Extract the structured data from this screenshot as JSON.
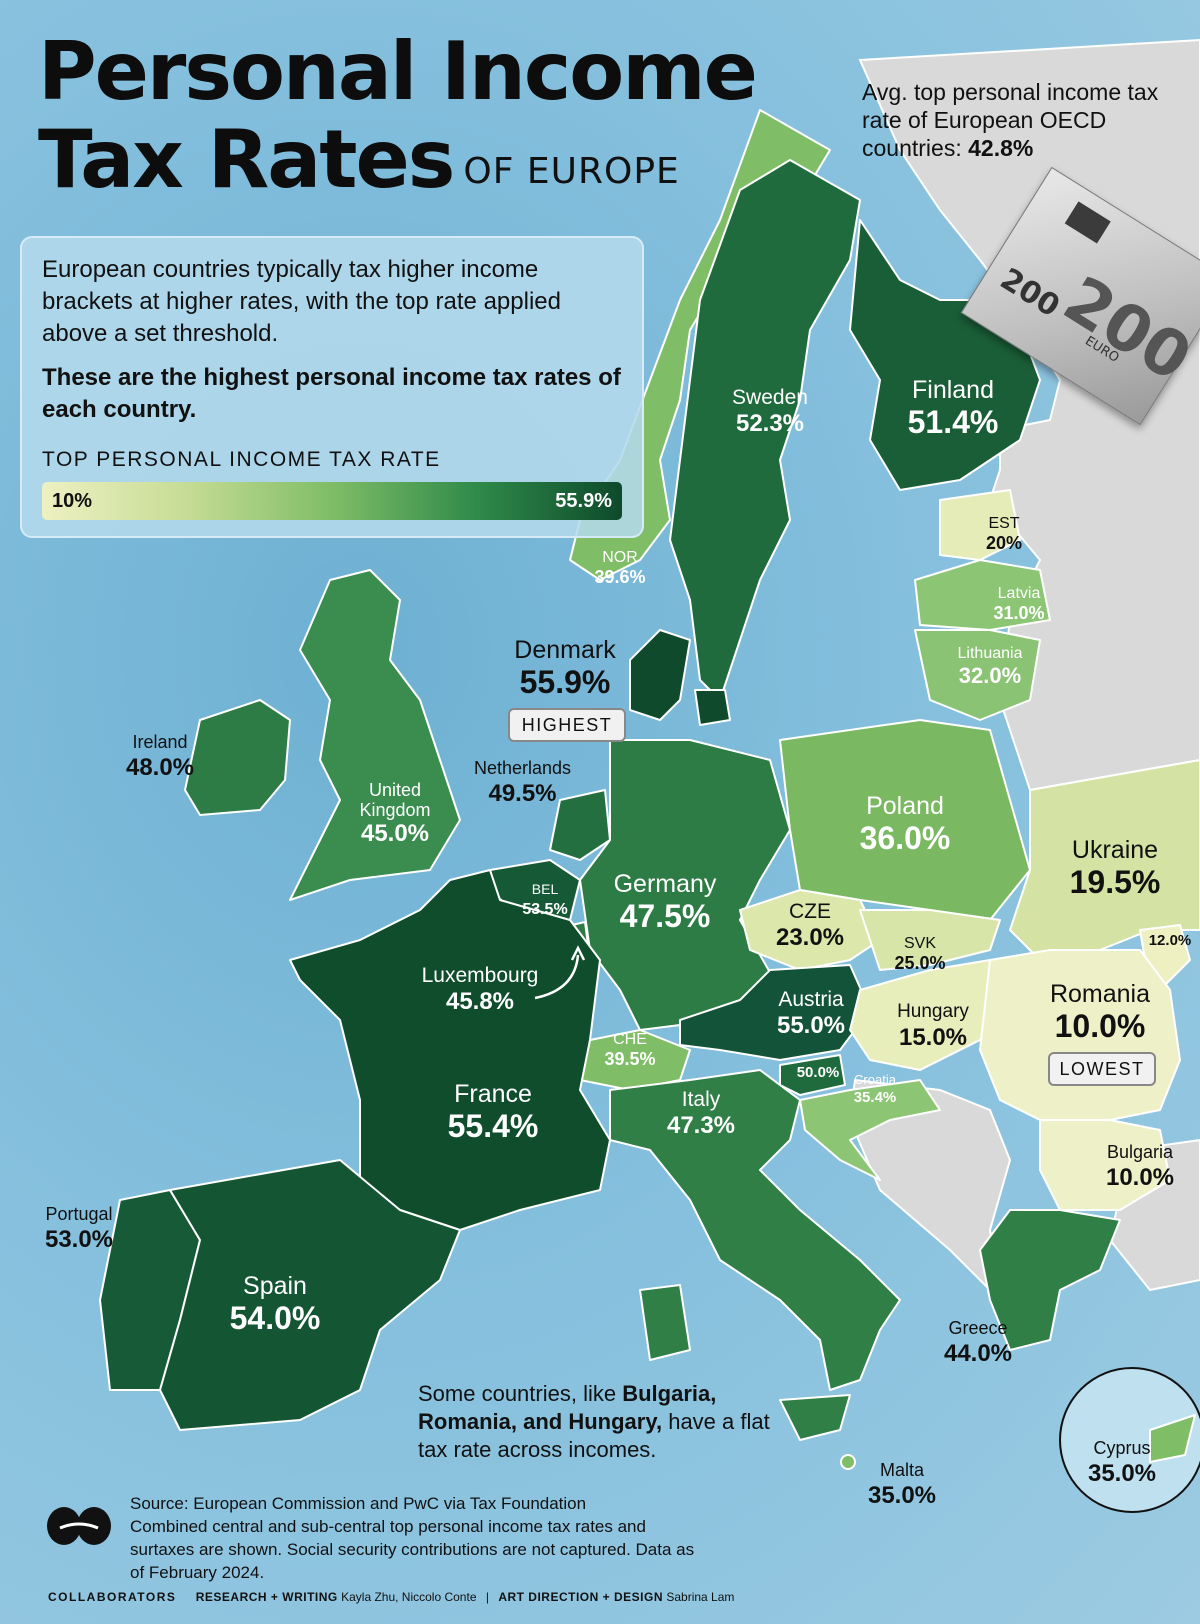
{
  "header": {
    "title_line1": "Personal Income",
    "title_line2": "Tax Rates",
    "title_sub": "OF EUROPE"
  },
  "average_note": {
    "text": "Avg. top personal income tax rate of European OECD countries:",
    "value": "42.8%"
  },
  "intro": {
    "paragraph1": "European countries typically tax higher income brackets at higher rates, with the top rate applied above a set threshold.",
    "paragraph2": "These are the highest personal income tax rates of each country.",
    "legend_title": "TOP PERSONAL INCOME TAX RATE",
    "legend_min": "10%",
    "legend_max": "55.9%"
  },
  "colors": {
    "scale_low": "#eef0c2",
    "scale_mid": "#7fbd66",
    "scale_high": "#0e4a2b",
    "no_data": "#d9d9d9",
    "sea": "#84bfdd"
  },
  "countries": {
    "sweden": {
      "name": "Sweden",
      "value": "52.3%"
    },
    "finland": {
      "name": "Finland",
      "value": "51.4%"
    },
    "norway": {
      "name": "NOR",
      "value": "39.6%"
    },
    "estonia": {
      "name": "EST",
      "value": "20%"
    },
    "latvia": {
      "name": "Latvia",
      "value": "31.0%"
    },
    "lithuania": {
      "name": "Lithuania",
      "value": "32.0%"
    },
    "denmark": {
      "name": "Denmark",
      "value": "55.9%",
      "badge": "HIGHEST"
    },
    "ireland": {
      "name": "Ireland",
      "value": "48.0%"
    },
    "uk": {
      "name": "United Kingdom",
      "value": "45.0%"
    },
    "netherlands": {
      "name": "Netherlands",
      "value": "49.5%"
    },
    "poland": {
      "name": "Poland",
      "value": "36.0%"
    },
    "ukraine": {
      "name": "Ukraine",
      "value": "19.5%"
    },
    "moldova": {
      "value": "12.0%"
    },
    "belgium": {
      "name": "BEL",
      "value": "53.5%"
    },
    "germany": {
      "name": "Germany",
      "value": "47.5%"
    },
    "czechia": {
      "name": "CZE",
      "value": "23.0%"
    },
    "slovakia": {
      "name": "SVK",
      "value": "25.0%"
    },
    "luxembourg": {
      "name": "Luxembourg",
      "value": "45.8%"
    },
    "austria": {
      "name": "Austria",
      "value": "55.0%"
    },
    "hungary": {
      "name": "Hungary",
      "value": "15.0%"
    },
    "romania": {
      "name": "Romania",
      "value": "10.0%",
      "badge": "LOWEST"
    },
    "switzerland": {
      "name": "CHE",
      "value": "39.5%"
    },
    "slovenia": {
      "value": "50.0%"
    },
    "croatia": {
      "name": "Croatia",
      "value": "35.4%"
    },
    "france": {
      "name": "France",
      "value": "55.4%"
    },
    "italy": {
      "name": "Italy",
      "value": "47.3%"
    },
    "bulgaria": {
      "name": "Bulgaria",
      "value": "10.0%"
    },
    "portugal": {
      "name": "Portugal",
      "value": "53.0%"
    },
    "spain": {
      "name": "Spain",
      "value": "54.0%"
    },
    "greece": {
      "name": "Greece",
      "value": "44.0%"
    },
    "malta": {
      "name": "Malta",
      "value": "35.0%"
    },
    "cyprus": {
      "name": "Cyprus",
      "value": "35.0%"
    }
  },
  "note": {
    "prefix": "Some countries, like",
    "bold": "Bulgaria, Romania, and Hungary,",
    "suffix": "have a flat tax rate across incomes."
  },
  "source": {
    "line1": "Source: European Commission and PwC via Tax Foundation",
    "line2": "Combined central and sub-central top personal income tax rates and surtaxes are shown. Social security contributions are not captured. Data as of February 2024."
  },
  "credits": {
    "label": "COLLABORATORS",
    "research_role": "RESEARCH + WRITING",
    "research_names": "Kayla Zhu, Niccolo Conte",
    "separator": "|",
    "design_role": "ART DIRECTION + DESIGN",
    "design_names": "Sabrina Lam"
  },
  "banknote": {
    "denomination": "200",
    "currency_word": "EURO"
  }
}
